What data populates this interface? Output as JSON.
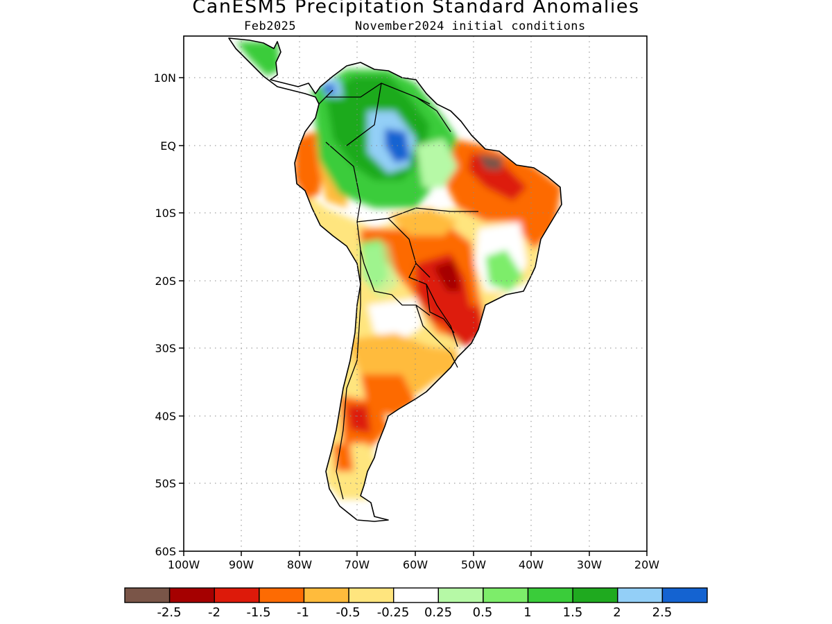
{
  "map": {
    "title": "CanESM5 Precipitation Standard Anomalies",
    "valid_month": "Feb2025",
    "init_conditions": "November2024 initial conditions",
    "lat_labels": [
      "10N",
      "EQ",
      "10S",
      "20S",
      "30S",
      "40S",
      "50S",
      "60S"
    ],
    "lon_labels": [
      "100W",
      "90W",
      "80W",
      "70W",
      "60W",
      "50W",
      "40W",
      "30W",
      "20W"
    ]
  },
  "legend": {
    "colors": [
      "#7a5548",
      "#a50000",
      "#dd1a0a",
      "#fd6b03",
      "#ffbb3c",
      "#ffe57e",
      "#ffffff",
      "#b6f9a6",
      "#7ded6a",
      "#3acc3a",
      "#1faa1f",
      "#93cff7",
      "#1463d1"
    ],
    "labels": [
      "-2.5",
      "-2",
      "-1.5",
      "-1",
      "-0.5",
      "-0.25",
      "0.25",
      "0.5",
      "1",
      "1.5",
      "2",
      "2.5"
    ]
  }
}
